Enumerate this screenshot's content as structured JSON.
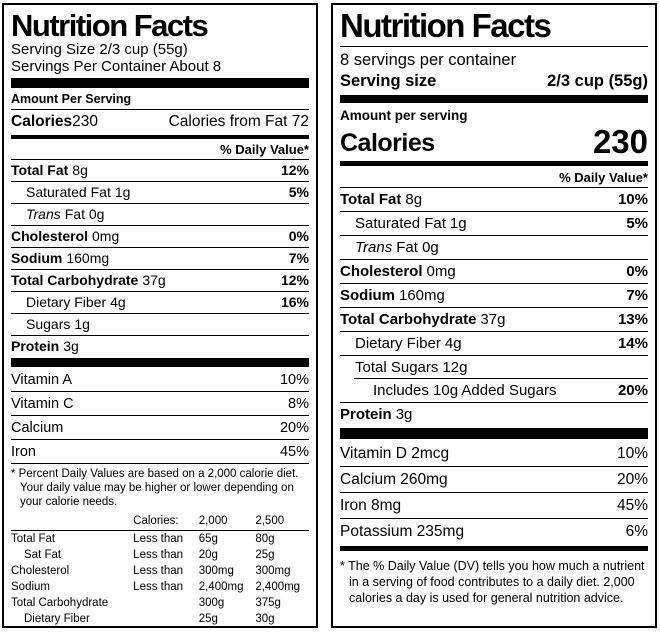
{
  "page": {
    "background": "#ffffff",
    "text_color": "#000000"
  },
  "old_label": {
    "title": "Nutrition Facts",
    "serving_size": "Serving Size 2/3 cup (55g)",
    "servings_per_container": "Servings Per Container About 8",
    "amount_per_serving": "Amount Per Serving",
    "calories_label": "Calories",
    "calories_value": "230",
    "calories_from_fat": "Calories from Fat 72",
    "daily_value_header": "% Daily Value*",
    "nutrients": [
      {
        "italic": "",
        "name": "Total Fat",
        "amount": "8g",
        "dv": "12%"
      },
      {
        "italic": "",
        "name": "Saturated Fat",
        "amount": "1g",
        "dv": "5%"
      },
      {
        "italic": "Trans",
        "name": "",
        "amount": "Fat 0g",
        "dv": ""
      },
      {
        "italic": "",
        "name": "Cholesterol",
        "amount": "0mg",
        "dv": "0%"
      },
      {
        "italic": "",
        "name": "Sodium",
        "amount": "160mg",
        "dv": "7%"
      },
      {
        "italic": "",
        "name": "Total Carbohydrate",
        "amount": "37g",
        "dv": "12%"
      },
      {
        "italic": "",
        "name": "Dietary Fiber",
        "amount": "4g",
        "dv": "16%"
      },
      {
        "italic": "",
        "name": "Sugars",
        "amount": "1g",
        "dv": ""
      },
      {
        "italic": "",
        "name": "Protein",
        "amount": "3g",
        "dv": ""
      }
    ],
    "vitamins": [
      {
        "name": "Vitamin A",
        "dv": "10%"
      },
      {
        "name": "Vitamin C",
        "dv": "8%"
      },
      {
        "name": "Calcium",
        "dv": "20%"
      },
      {
        "name": "Iron",
        "dv": "45%"
      }
    ],
    "footnote": "* Percent Daily Values are based on a 2,000 calorie diet. Your daily value may be higher or lower depending on your calorie needs.",
    "dv_table": {
      "header": {
        "calories": "Calories:",
        "v1": "2,000",
        "v2": "2,500"
      },
      "rows": [
        {
          "name": "Total Fat",
          "qualifier": "Less than",
          "v1": "65g",
          "v2": "80g"
        },
        {
          "name": "Sat Fat",
          "qualifier": "Less than",
          "v1": "20g",
          "v2": "25g"
        },
        {
          "name": "Cholesterol",
          "qualifier": "Less than",
          "v1": "300mg",
          "v2": "300mg"
        },
        {
          "name": "Sodium",
          "qualifier": "Less than",
          "v1": "2,400mg",
          "v2": "2,400mg"
        },
        {
          "name": "Total Carbohydrate",
          "qualifier": "",
          "v1": "300g",
          "v2": "375g"
        },
        {
          "name": "Dietary Fiber",
          "qualifier": "",
          "v1": "25g",
          "v2": "30g"
        }
      ]
    }
  },
  "new_label": {
    "title": "Nutrition Facts",
    "servings_per_container": "8 servings per container",
    "serving_size_label": "Serving size",
    "serving_size_value": "2/3 cup (55g)",
    "amount_per_serving": "Amount per serving",
    "calories_label": "Calories",
    "calories_value": "230",
    "daily_value_header": "% Daily Value*",
    "nutrients": [
      {
        "italic": "",
        "name": "Total Fat",
        "amount": "8g",
        "dv": "10%"
      },
      {
        "italic": "",
        "name": "Saturated Fat",
        "amount": "1g",
        "dv": "5%"
      },
      {
        "italic": "Trans",
        "name": "",
        "amount": "Fat 0g",
        "dv": ""
      },
      {
        "italic": "",
        "name": "Cholesterol",
        "amount": "0mg",
        "dv": "0%"
      },
      {
        "italic": "",
        "name": "Sodium",
        "amount": "160mg",
        "dv": "7%"
      },
      {
        "italic": "",
        "name": "Total Carbohydrate",
        "amount": "37g",
        "dv": "13%"
      },
      {
        "italic": "",
        "name": "Dietary Fiber",
        "amount": "4g",
        "dv": "14%"
      },
      {
        "italic": "",
        "name": "Total Sugars",
        "amount": "12g",
        "dv": ""
      },
      {
        "italic": "",
        "name": "Includes 10g Added Sugars",
        "amount": "",
        "dv": "20%"
      },
      {
        "italic": "",
        "name": "Protein",
        "amount": "3g",
        "dv": ""
      }
    ],
    "vitamins": [
      {
        "name": "Vitamin D 2mcg",
        "dv": "10%"
      },
      {
        "name": "Calcium 260mg",
        "dv": "20%"
      },
      {
        "name": "Iron 8mg",
        "dv": "45%"
      },
      {
        "name": "Potassium 235mg",
        "dv": "6%"
      }
    ],
    "footnote": "* The % Daily Value (DV) tells you how much a nutrient in a serving of food contributes to a daily diet. 2,000 calories a day is used for general nutrition advice."
  }
}
